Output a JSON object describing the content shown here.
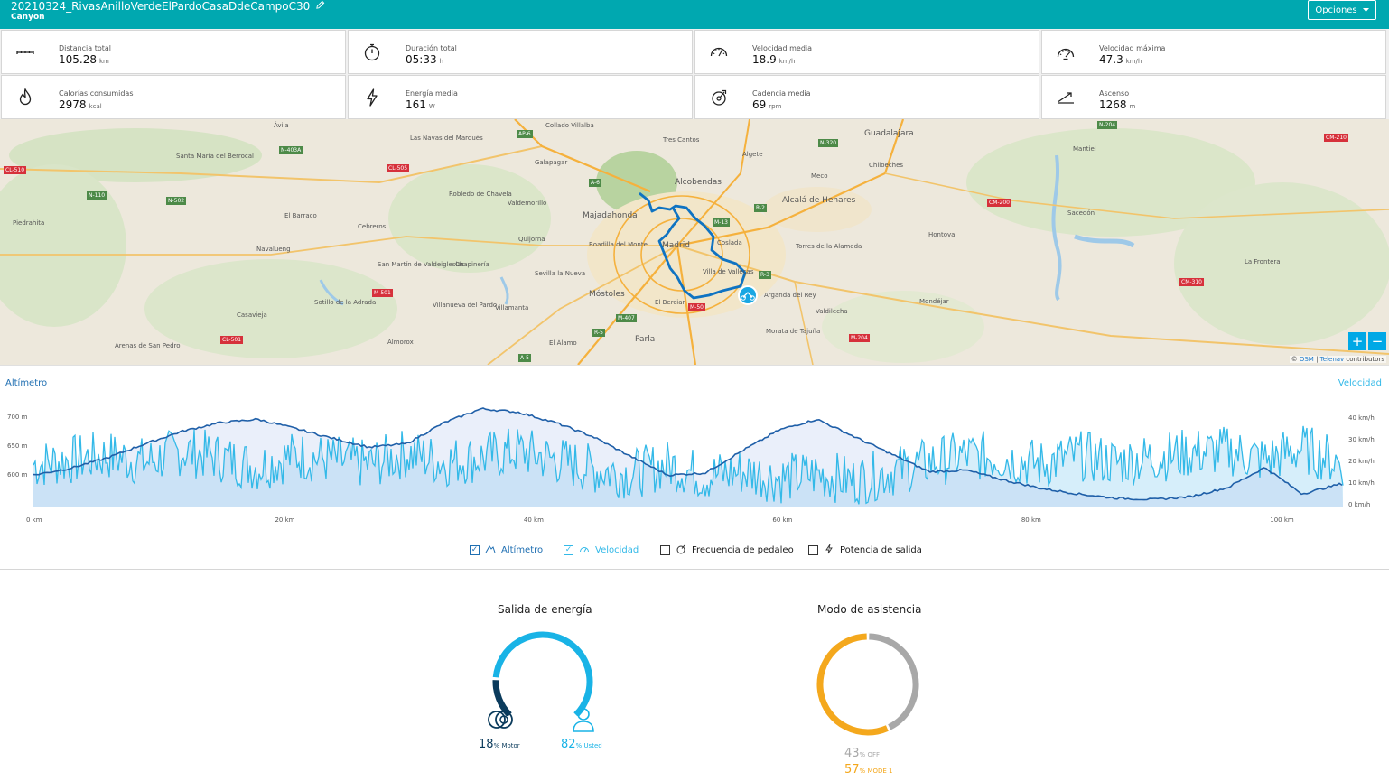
{
  "header": {
    "title": "20210324_RivasAnilloVerdeElPardoCasaDdeCampoC30",
    "subtitle": "Canyon",
    "options_label": "Opciones"
  },
  "stats": [
    {
      "label": "Distancia total",
      "value": "105.28",
      "unit": "km",
      "icon": "distance-icon"
    },
    {
      "label": "Duración total",
      "value": "05:33",
      "unit": "h",
      "icon": "stopwatch-icon"
    },
    {
      "label": "Velocidad media",
      "value": "18.9",
      "unit": "km/h",
      "icon": "speedometer-icon"
    },
    {
      "label": "Velocidad máxima",
      "value": "47.3",
      "unit": "km/h",
      "icon": "max-speed-icon"
    },
    {
      "label": "Calorías consumidas",
      "value": "2978",
      "unit": "kcal",
      "icon": "flame-icon"
    },
    {
      "label": "Energía media",
      "value": "161",
      "unit": "W",
      "icon": "lightning-icon"
    },
    {
      "label": "Cadencia media",
      "value": "69",
      "unit": "rpm",
      "icon": "cadence-icon"
    },
    {
      "label": "Ascenso",
      "value": "1268",
      "unit": "m",
      "icon": "ascent-icon"
    }
  ],
  "map": {
    "places": [
      "Ávila",
      "Las Navas del Marqués",
      "Collado Villalba",
      "Tres Cantos",
      "Algete",
      "Guadalajara",
      "Santa María del Berrocal",
      "Galapagar",
      "Alcobendas",
      "Meco",
      "Chiloeches",
      "Mantiel",
      "Robledo de Chavela",
      "Valdemorillo",
      "Alcalá de Henares",
      "Sacedón",
      "Piedrahita",
      "El Barraco",
      "Cebreros",
      "Majadahonda",
      "Madrid",
      "Coslada",
      "Torres de la Alameda",
      "Hontova",
      "Boadilla del Monte",
      "Quijorna",
      "Navalueng",
      "San Martín de Valdeiglesias",
      "Chapinería",
      "Sevilla la Nueva",
      "Villa de Vallecas",
      "Arganda del Rey",
      "Móstoles",
      "Valdilecha",
      "Mondéjar",
      "La Frontera",
      "Sotillo de la Adrada",
      "Villanueva del Pardo",
      "Villamanta",
      "El Berciar",
      "Casavieja",
      "Parla",
      "Morata de Tajuña",
      "Almorox",
      "El Álamo",
      "Arenas de San Pedro"
    ],
    "roads": [
      "CL-510",
      "N-110",
      "N-403A",
      "N-502",
      "CL-505",
      "AP-6",
      "A-6",
      "M-13",
      "R-2",
      "N-320",
      "CM-210",
      "CM-200",
      "M-501",
      "CL-501",
      "M-407",
      "M-50",
      "R-5",
      "A-5",
      "R-3",
      "M-204",
      "CM-310",
      "N-204"
    ],
    "zoom_in": "+",
    "zoom_out": "−",
    "attribution_prefix": "©",
    "attribution_osm": "OSM",
    "attribution_sep": "|",
    "attribution_telenav": "Telenav",
    "attribution_suffix": "contributors"
  },
  "chart": {
    "left_title": "Altímetro",
    "right_title": "Velocidad",
    "left_ticks": [
      "700 m",
      "650 m",
      "600 m"
    ],
    "right_ticks": [
      "40 km/h",
      "30 km/h",
      "20 km/h",
      "10 km/h",
      "0 km/h"
    ],
    "x_ticks": [
      "0 km",
      "20 km",
      "40 km",
      "60 km",
      "80 km",
      "100 km"
    ],
    "legend": [
      {
        "label": "Altímetro",
        "checked": true,
        "color": "#1f6fb2"
      },
      {
        "label": "Velocidad",
        "checked": true,
        "color": "#33b9e8"
      },
      {
        "label": "Frecuencia de pedaleo",
        "checked": false,
        "color": "#222222"
      },
      {
        "label": "Potencia de salida",
        "checked": false,
        "color": "#222222"
      }
    ]
  },
  "chart_data": {
    "type": "line",
    "x_range": [
      0,
      105.28
    ],
    "series": [
      {
        "name": "Altímetro",
        "unit": "m",
        "ylim": [
          570,
          720
        ],
        "x": [
          0,
          3,
          6,
          9,
          12,
          15,
          18,
          21,
          24,
          27,
          30,
          33,
          36,
          39,
          42,
          45,
          48,
          51,
          54,
          57,
          60,
          63,
          66,
          69,
          72,
          75,
          78,
          81,
          84,
          87,
          90,
          93,
          96,
          99,
          102,
          105
        ],
        "values": [
          615,
          625,
          640,
          660,
          678,
          690,
          695,
          682,
          668,
          655,
          660,
          690,
          710,
          705,
          690,
          670,
          642,
          615,
          618,
          650,
          680,
          695,
          670,
          645,
          620,
          622,
          608,
          596,
          588,
          582,
          580,
          584,
          597,
          626,
          588,
          602
        ]
      },
      {
        "name": "Velocidad",
        "unit": "km/h",
        "ylim": [
          0,
          45
        ],
        "x": [
          0,
          3,
          6,
          9,
          12,
          15,
          18,
          21,
          24,
          27,
          30,
          33,
          36,
          39,
          42,
          45,
          48,
          51,
          54,
          57,
          60,
          63,
          66,
          69,
          72,
          75,
          78,
          81,
          84,
          87,
          90,
          93,
          96,
          99,
          102,
          105
        ],
        "values": [
          18,
          20,
          22,
          19,
          24,
          21,
          17,
          22,
          20,
          18,
          23,
          19,
          21,
          24,
          20,
          16,
          14,
          18,
          13,
          15,
          12,
          14,
          11,
          15,
          19,
          22,
          21,
          18,
          22,
          19,
          21,
          23,
          24,
          20,
          25,
          19
        ]
      }
    ]
  },
  "energy": {
    "title": "Salida de energía",
    "motor_pct": "18",
    "motor_label": "Motor",
    "user_pct": "82",
    "user_label": "Usted",
    "motor_fraction": 0.18,
    "motor_color": "#0b3b5c",
    "user_color": "#19b3e6"
  },
  "assist": {
    "title": "Modo de asistencia",
    "off_pct": "43",
    "off_label": "OFF",
    "mode1_pct": "57",
    "mode1_label": "MODE 1",
    "off_fraction": 0.43,
    "off_color": "#a8a8a8",
    "mode1_color": "#f4a81d"
  },
  "pct_sign": "%"
}
